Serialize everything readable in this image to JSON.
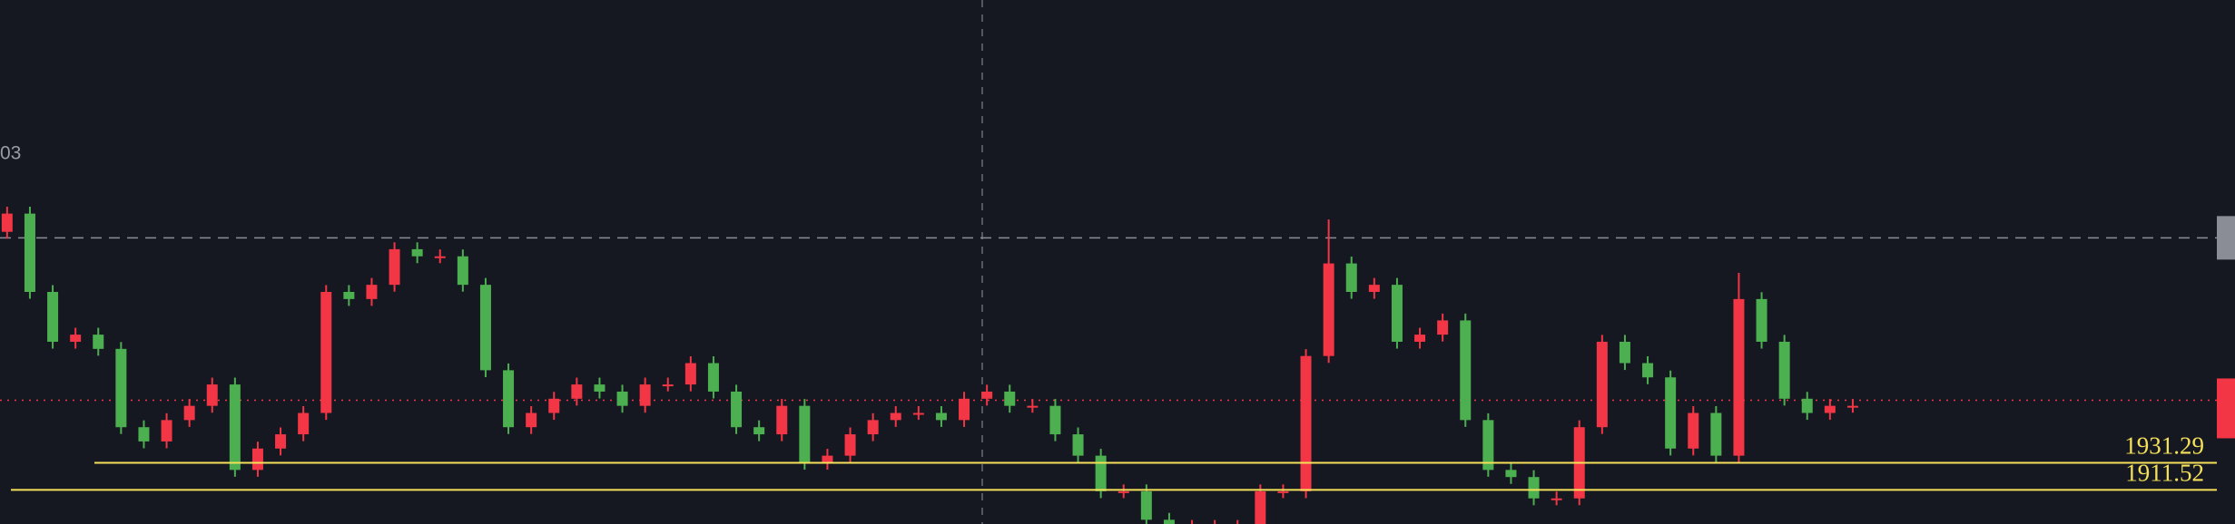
{
  "chart_data": {
    "type": "candlestick",
    "partial_label": "03",
    "ylim": [
      1886.6,
      2269.3
    ],
    "up_color": "#f23645",
    "down_color": "#4caf50",
    "open": [
      2100.0,
      2113.3,
      2056.1,
      2019.7,
      2024.9,
      2014.5,
      1957.3,
      1946.9,
      1962.5,
      1972.9,
      1988.5,
      1926.1,
      1941.7,
      1952.1,
      1967.7,
      2056.1,
      2050.9,
      2061.3,
      2087.3,
      2082.1,
      2082.1,
      2061.3,
      1998.9,
      1957.3,
      1967.7,
      1978.1,
      1988.5,
      1983.3,
      1972.9,
      1988.5,
      1988.5,
      2004.1,
      1983.3,
      1957.3,
      1952.1,
      1972.9,
      1931.3,
      1936.5,
      1952.1,
      1962.5,
      1967.7,
      1967.7,
      1962.5,
      1978.1,
      1983.3,
      1972.9,
      1972.9,
      1952.1,
      1936.5,
      1910.5,
      1910.5,
      1889.7,
      1884.5,
      1884.5,
      1884.5,
      1884.5,
      1910.5,
      1910.5,
      2009.3,
      2076.9,
      2056.1,
      2061.3,
      2019.7,
      2024.9,
      2035.3,
      1962.5,
      1926.1,
      1920.9,
      1905.3,
      1905.3,
      1957.3,
      2019.7,
      2004.1,
      1993.7,
      1941.7,
      1967.7,
      1936.5,
      2050.9,
      2019.7,
      1978.1,
      1967.7,
      1972.9
    ],
    "high": [
      2118.3,
      2118.3,
      2061.1,
      2029.9,
      2029.9,
      2019.5,
      1962.3,
      1967.5,
      1977.9,
      1993.5,
      1993.5,
      1946.7,
      1957.1,
      1972.7,
      2061.1,
      2061.1,
      2066.3,
      2092.3,
      2092.3,
      2087.1,
      2087.1,
      2066.3,
      2003.9,
      1972.7,
      1983.1,
      1993.5,
      1993.5,
      1988.3,
      1993.5,
      1993.5,
      2009.1,
      2009.1,
      1988.3,
      1962.3,
      1977.9,
      1977.9,
      1941.5,
      1957.1,
      1967.5,
      1972.7,
      1972.7,
      1972.7,
      1983.1,
      1988.3,
      1988.3,
      1977.9,
      1977.9,
      1957.1,
      1941.5,
      1915.5,
      1915.5,
      1894.7,
      1889.5,
      1889.5,
      1889.5,
      1915.5,
      1915.5,
      2014.3,
      2109.0,
      2081.9,
      2066.3,
      2066.3,
      2029.9,
      2040.3,
      2040.3,
      1967.5,
      1931.1,
      1925.9,
      1910.3,
      1962.3,
      2024.7,
      2024.7,
      2009.1,
      1998.7,
      1972.7,
      1972.7,
      2070.0,
      2055.9,
      2024.7,
      1983.1,
      1977.9,
      1977.9
    ],
    "low": [
      2095.0,
      2051.1,
      2014.7,
      2014.7,
      2009.5,
      1952.3,
      1941.9,
      1941.9,
      1957.5,
      1967.9,
      1921.1,
      1921.1,
      1936.7,
      1947.1,
      1962.7,
      2045.9,
      2045.9,
      2056.3,
      2077.1,
      2077.1,
      2056.3,
      1993.9,
      1952.3,
      1952.3,
      1962.7,
      1973.1,
      1978.3,
      1967.9,
      1967.9,
      1983.5,
      1983.5,
      1978.3,
      1952.3,
      1947.1,
      1947.1,
      1926.3,
      1926.3,
      1931.5,
      1947.1,
      1957.5,
      1962.7,
      1957.5,
      1957.5,
      1973.1,
      1967.9,
      1967.9,
      1947.1,
      1931.5,
      1905.5,
      1905.5,
      1884.7,
      1879.5,
      1879.5,
      1879.5,
      1879.5,
      1879.5,
      1905.5,
      1905.5,
      2004.3,
      2051.1,
      2051.1,
      2014.7,
      2014.7,
      2019.9,
      1957.5,
      1921.1,
      1915.9,
      1900.3,
      1900.3,
      1900.3,
      1952.3,
      1999.1,
      1988.7,
      1936.7,
      1936.7,
      1931.5,
      1931.5,
      2014.7,
      1973.1,
      1962.7,
      1962.7,
      1967.9
    ],
    "close": [
      2113.3,
      2056.1,
      2019.7,
      2024.9,
      2014.5,
      1957.3,
      1946.9,
      1962.5,
      1972.9,
      1988.5,
      1926.1,
      1941.7,
      1952.1,
      1967.7,
      2056.1,
      2050.9,
      2061.3,
      2087.3,
      2082.1,
      2082.1,
      2061.3,
      1998.9,
      1957.3,
      1967.7,
      1978.1,
      1988.5,
      1983.3,
      1972.9,
      1988.5,
      1988.5,
      2004.1,
      1983.3,
      1957.3,
      1952.1,
      1972.9,
      1931.3,
      1936.5,
      1952.1,
      1962.5,
      1967.7,
      1967.7,
      1962.5,
      1978.1,
      1983.3,
      1972.9,
      1972.9,
      1952.1,
      1936.5,
      1910.5,
      1910.5,
      1889.7,
      1884.5,
      1884.5,
      1884.5,
      1884.5,
      1910.5,
      1910.5,
      2009.3,
      2076.9,
      2056.1,
      2061.3,
      2019.7,
      2024.9,
      2035.3,
      1962.5,
      1926.1,
      1920.9,
      1905.3,
      1905.3,
      1957.3,
      2019.7,
      2004.1,
      1993.7,
      1941.7,
      1967.7,
      1936.5,
      2050.9,
      2019.7,
      1978.1,
      1967.7,
      1972.9,
      1972.9
    ],
    "levels": [
      1931.29,
      1911.52
    ],
    "level_color": "#f5e05a",
    "price_lines": [
      {
        "value": 2095.6,
        "color": "#8a8d96"
      },
      {
        "value": 1977.0,
        "color": "#f23645"
      }
    ]
  }
}
